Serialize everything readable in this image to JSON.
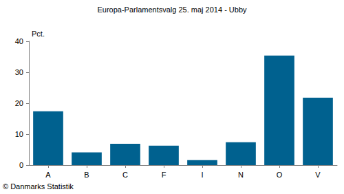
{
  "chart_data": {
    "type": "bar",
    "title": "Europa-Parlamentsvalg 25. maj 2014 - Ubby",
    "y_label": "Pct.",
    "annotation": "© Danmarks Statistik",
    "categories": [
      "A",
      "B",
      "C",
      "F",
      "I",
      "N",
      "O",
      "V"
    ],
    "values": [
      17.4,
      4.1,
      6.9,
      6.3,
      1.6,
      7.4,
      35.4,
      21.8
    ],
    "color": "#00618f",
    "ylim": [
      0,
      40
    ],
    "yticks": [
      0,
      10,
      20,
      30,
      40
    ],
    "grid": false
  }
}
